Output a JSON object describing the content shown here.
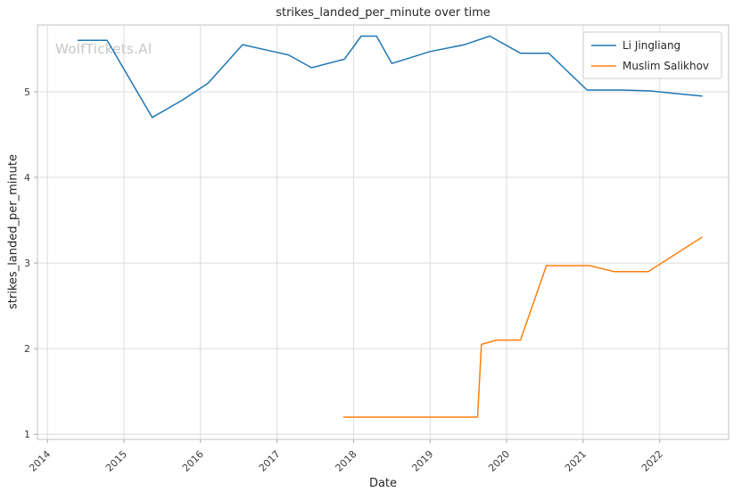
{
  "watermark": "WolfTickets.AI",
  "chart_data": {
    "type": "line",
    "title": "strikes_landed_per_minute over time",
    "xlabel": "Date",
    "ylabel": "strikes_landed_per_minute",
    "x_ticks": [
      2014,
      2015,
      2016,
      2017,
      2018,
      2019,
      2020,
      2021,
      2022
    ],
    "y_ticks": [
      1,
      2,
      3,
      4,
      5
    ],
    "xlim": [
      2013.87,
      2022.9
    ],
    "ylim": [
      0.94,
      5.78
    ],
    "grid": true,
    "legend_position": "top-right",
    "style": {
      "grid_color": "#dcdcdc",
      "spine_color": "#cccccc",
      "tick_color": "#aaaaaa",
      "background": "#ffffff"
    },
    "series": [
      {
        "name": "Li Jingliang",
        "color": "#1f77b4",
        "points": [
          [
            2014.4,
            5.6
          ],
          [
            2014.78,
            5.6
          ],
          [
            2015.37,
            4.7
          ],
          [
            2015.76,
            4.9
          ],
          [
            2016.1,
            5.1
          ],
          [
            2016.55,
            5.55
          ],
          [
            2016.95,
            5.47
          ],
          [
            2017.15,
            5.43
          ],
          [
            2017.45,
            5.28
          ],
          [
            2017.88,
            5.38
          ],
          [
            2018.1,
            5.65
          ],
          [
            2018.3,
            5.65
          ],
          [
            2018.5,
            5.33
          ],
          [
            2019.0,
            5.47
          ],
          [
            2019.45,
            5.55
          ],
          [
            2019.78,
            5.65
          ],
          [
            2020.18,
            5.45
          ],
          [
            2020.55,
            5.45
          ],
          [
            2021.05,
            5.02
          ],
          [
            2021.5,
            5.02
          ],
          [
            2021.88,
            5.01
          ],
          [
            2022.2,
            4.98
          ],
          [
            2022.55,
            4.95
          ]
        ]
      },
      {
        "name": "Muslim Salikhov",
        "color": "#ff7f0e",
        "points": [
          [
            2017.87,
            1.2
          ],
          [
            2019.62,
            1.2
          ],
          [
            2019.67,
            2.05
          ],
          [
            2019.87,
            2.1
          ],
          [
            2020.18,
            2.1
          ],
          [
            2020.52,
            2.97
          ],
          [
            2021.08,
            2.97
          ],
          [
            2021.4,
            2.9
          ],
          [
            2021.85,
            2.9
          ],
          [
            2022.55,
            3.3
          ]
        ]
      }
    ]
  }
}
